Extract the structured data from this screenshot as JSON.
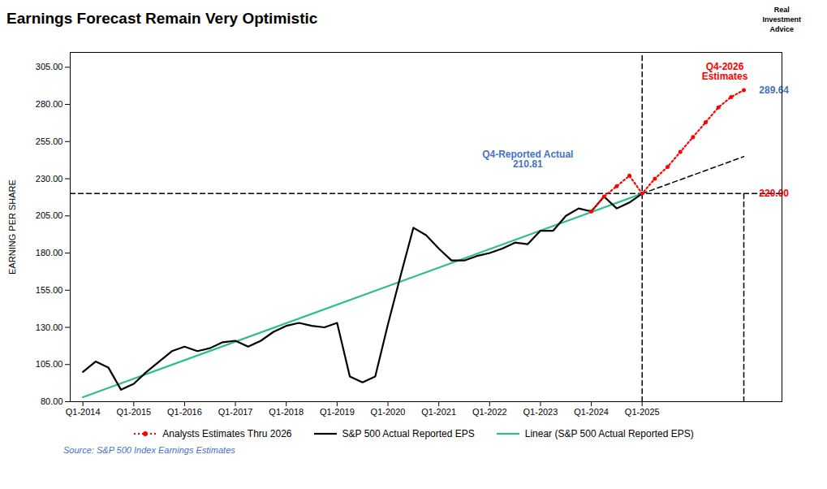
{
  "chart_data": {
    "type": "line",
    "title": "Earnings Forecast Remain Very Optimistic",
    "ylabel": "EARNING PER SHARE",
    "source": "Source: S&P 500 Index Earnings Estimates",
    "logo": "Real\nInvestment\nAdvice",
    "xlim": [
      -1,
      55
    ],
    "xticks": [
      {
        "value": 0,
        "label": "Q1-2014"
      },
      {
        "value": 4,
        "label": "Q1-2015"
      },
      {
        "value": 8,
        "label": "Q1-2016"
      },
      {
        "value": 12,
        "label": "Q1-2017"
      },
      {
        "value": 16,
        "label": "Q1-2018"
      },
      {
        "value": 20,
        "label": "Q1-2019"
      },
      {
        "value": 24,
        "label": "Q1-2020"
      },
      {
        "value": 28,
        "label": "Q1-2021"
      },
      {
        "value": 32,
        "label": "Q1-2022"
      },
      {
        "value": 36,
        "label": "Q1-2023"
      },
      {
        "value": 40,
        "label": "Q1-2024"
      },
      {
        "value": 44,
        "label": "Q1-2025"
      }
    ],
    "ylim": [
      80,
      315
    ],
    "yticks": [
      {
        "value": 80,
        "label": "80.00"
      },
      {
        "value": 105,
        "label": "105.00"
      },
      {
        "value": 130,
        "label": "130.00"
      },
      {
        "value": 155,
        "label": "155.00"
      },
      {
        "value": 180,
        "label": "180.00"
      },
      {
        "value": 205,
        "label": "205.00"
      },
      {
        "value": 230,
        "label": "230.00"
      },
      {
        "value": 255,
        "label": "255.00"
      },
      {
        "value": 280,
        "label": "280.00"
      },
      {
        "value": 305,
        "label": "305.00"
      }
    ],
    "grid": false,
    "legend": "bottom",
    "series": [
      {
        "name": "Analysts Estimates Thru 2026",
        "color": "#ff0000",
        "line_style": "dotted",
        "marker": "circle",
        "x": [
          40,
          41,
          42,
          43,
          44,
          45,
          46,
          47,
          48,
          49,
          50,
          51,
          52
        ],
        "values": [
          208,
          218,
          225,
          232,
          220,
          230,
          238,
          248,
          258,
          268,
          278,
          285,
          289.64
        ]
      },
      {
        "name": "S&P 500 Actual Reported EPS",
        "color": "#000000",
        "line_style": "solid",
        "x": [
          0,
          1,
          2,
          3,
          4,
          5,
          6,
          7,
          8,
          9,
          10,
          11,
          12,
          13,
          14,
          15,
          16,
          17,
          18,
          19,
          20,
          21,
          22,
          23,
          24,
          25,
          26,
          27,
          28,
          29,
          30,
          31,
          32,
          33,
          34,
          35,
          36,
          37,
          38,
          39,
          40,
          41,
          42,
          43,
          44
        ],
        "values": [
          100,
          107,
          103,
          88,
          92,
          100,
          107,
          114,
          117,
          114,
          116,
          120,
          121,
          117,
          121,
          127,
          131,
          133,
          131,
          130,
          133,
          97,
          93,
          97,
          132,
          165,
          197,
          192,
          183,
          175,
          175,
          178,
          180,
          183,
          187,
          186,
          195,
          195,
          205,
          210,
          208,
          218,
          210,
          214,
          220
        ]
      },
      {
        "name": "Linear (S&P 500 Actual Reported EPS)",
        "color": "#2dbe8e",
        "line_style": "solid",
        "x": [
          0,
          44
        ],
        "values": [
          83,
          220
        ]
      },
      {
        "color": "#000000",
        "line_style": "dashed",
        "x": [
          44,
          52
        ],
        "values": [
          220,
          244.9090909090909
        ]
      },
      {
        "color": "#000000",
        "line_style": "dashed",
        "x": [
          -1,
          55
        ],
        "values": [
          220,
          220
        ]
      },
      {
        "color": "#000000",
        "line_style": "dashed",
        "x": [
          44,
          44
        ],
        "values": [
          80,
          315
        ]
      },
      {
        "color": "#000000",
        "line_style": "dashed",
        "x": [
          52,
          52
        ],
        "values": [
          80,
          220
        ]
      }
    ],
    "annotations": [
      {
        "text": "Q4-Reported Actual\n210.81",
        "x": 35,
        "y": 243,
        "color": "#4472c4"
      },
      {
        "text": "Q4-2026\nEstimates",
        "x": 50.5,
        "y": 302,
        "color": "#ff0000"
      },
      {
        "text": "289.64",
        "x": 53.2,
        "y": 289.64,
        "color": "#4472c4"
      },
      {
        "text": "220.00",
        "x": 53.2,
        "y": 220,
        "color": "#ff0000"
      }
    ]
  }
}
